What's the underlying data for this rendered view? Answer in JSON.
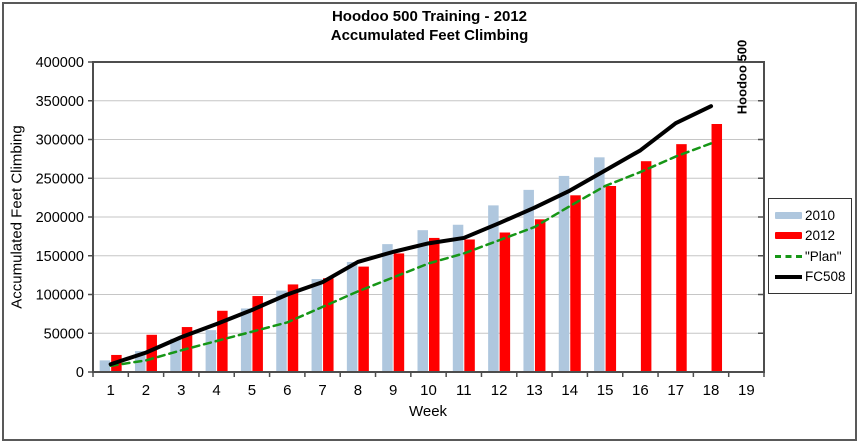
{
  "figure": {
    "title_line1": "Hoodoo 500 Training - 2012",
    "title_line2": "Accumulated Feet Climbing",
    "annotation": "Hoodoo 500"
  },
  "axes": {
    "y_title": "Accumulated Feet Climbing",
    "x_title": "Week"
  },
  "chart_data": {
    "type": "bar",
    "subtype": "combo-bar-line",
    "title": "Hoodoo 500 Training - 2012 / Accumulated Feet Climbing",
    "xlabel": "Week",
    "ylabel": "Accumulated Feet Climbing",
    "ylim": [
      0,
      400000
    ],
    "ytick_step": 50000,
    "yticks": [
      0,
      50000,
      100000,
      150000,
      200000,
      250000,
      300000,
      350000,
      400000
    ],
    "grid": "horizontal",
    "legend_position": "right",
    "annotation": {
      "text": "Hoodoo 500",
      "x_category": 18.8,
      "y": 400000
    },
    "categories": [
      "1",
      "2",
      "3",
      "4",
      "5",
      "6",
      "7",
      "8",
      "9",
      "10",
      "11",
      "12",
      "13",
      "14",
      "15",
      "16",
      "17",
      "18",
      "19"
    ],
    "series": [
      {
        "name": "2010",
        "render": "bar",
        "color": "#AFC7DE",
        "values": [
          15000,
          27000,
          43000,
          54000,
          82000,
          105000,
          120000,
          142000,
          165000,
          183000,
          190000,
          215000,
          235000,
          253000,
          277000,
          null,
          null,
          null,
          null
        ]
      },
      {
        "name": "2012",
        "render": "bar",
        "color": "#FF0000",
        "values": [
          22000,
          48000,
          58000,
          79000,
          98000,
          113000,
          121000,
          136000,
          153000,
          173000,
          171000,
          180000,
          197000,
          228000,
          240000,
          272000,
          294000,
          320000,
          null
        ]
      },
      {
        "name": "\"Plan\"",
        "render": "dashed-line",
        "color": "#169616",
        "values": [
          8000,
          15000,
          28000,
          40000,
          52000,
          64000,
          84000,
          104000,
          122000,
          140000,
          153000,
          170000,
          187000,
          214000,
          240000,
          258000,
          278000,
          295000,
          null
        ]
      },
      {
        "name": "FC508",
        "render": "line",
        "color": "#000000",
        "values": [
          10000,
          25000,
          45000,
          62000,
          80000,
          100000,
          116000,
          142000,
          155000,
          166000,
          173000,
          192000,
          212000,
          234000,
          260000,
          286000,
          321000,
          343000,
          null
        ]
      }
    ]
  }
}
